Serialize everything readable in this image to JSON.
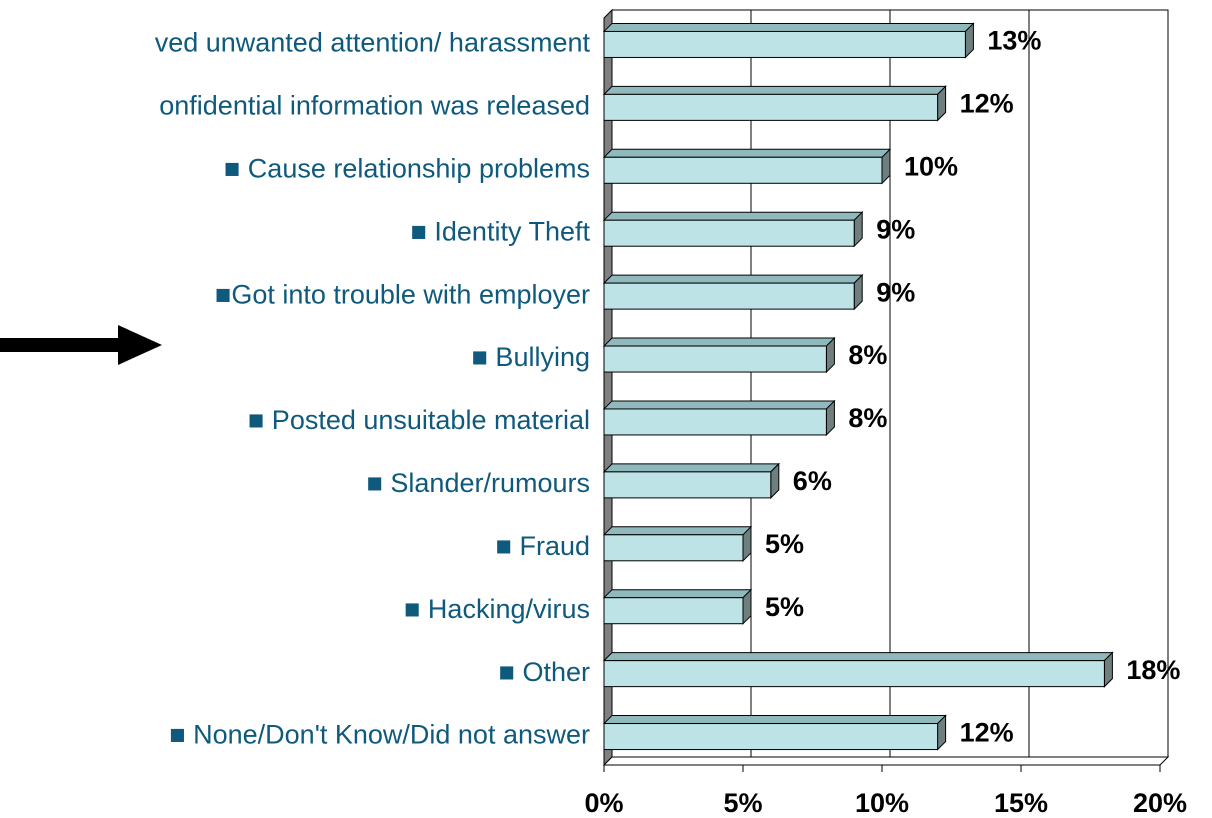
{
  "chart_data": {
    "type": "bar",
    "orientation": "horizontal",
    "categories": [
      "ved unwanted attention/ harassment",
      "onfidential information was released",
      "■ Cause relationship problems",
      "■ Identity Theft",
      "■Got into trouble with employer",
      "■ Bullying",
      "■ Posted unsuitable material",
      "■ Slander/rumours",
      "■ Fraud",
      "■ Hacking/virus",
      "■ Other",
      "■ None/Don't Know/Did not answer"
    ],
    "values": [
      13,
      12,
      10,
      9,
      9,
      8,
      8,
      6,
      5,
      5,
      18,
      12
    ],
    "value_labels": [
      "13%",
      "12%",
      "10%",
      "9%",
      "9%",
      "8%",
      "8%",
      "6%",
      "5%",
      "5%",
      "18%",
      "12%"
    ],
    "color": "#bde3e6",
    "xlim": [
      0,
      20
    ],
    "xticks": [
      {
        "value": 0,
        "label": "0%"
      },
      {
        "value": 5,
        "label": "5%"
      },
      {
        "value": 10,
        "label": "10%"
      },
      {
        "value": 15,
        "label": "15%"
      },
      {
        "value": 20,
        "label": "20%"
      }
    ],
    "grid": true
  }
}
